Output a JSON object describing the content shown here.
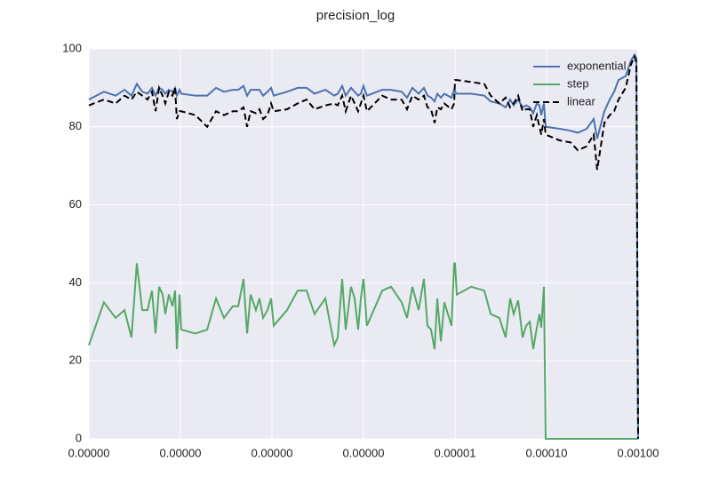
{
  "chart_data": {
    "type": "line",
    "title": "precision_log",
    "x": [
      1e-09,
      1.46e-09,
      1.96e-09,
      2.45e-09,
      2.92e-09,
      3.34e-09,
      3.83e-09,
      4.37e-09,
      4.89e-09,
      5.35e-09,
      5.85e-09,
      6.39e-09,
      6.84e-09,
      7.48e-09,
      8.18e-09,
      8.74e-09,
      9.14e-09,
      9.78e-09,
      1.02e-08,
      1.46e-08,
      1.96e-08,
      2.45e-08,
      2.99e-08,
      3.74e-08,
      4.28e-08,
      4.89e-08,
      5.35e-08,
      5.85e-08,
      6.68e-08,
      7.31e-08,
      8e-08,
      8.94e-08,
      9.78e-08,
      1.045e-07,
      1.46e-07,
      1.91e-07,
      2.39e-07,
      2.92e-07,
      3.83e-07,
      4.79e-07,
      5.23e-07,
      5.85e-07,
      6.39e-07,
      7.31e-07,
      8e-07,
      8.74e-07,
      9.35e-07,
      1e-06,
      1.09e-06,
      1.6e-06,
      2e-06,
      2.61e-06,
      2.99e-06,
      3.42e-06,
      4e-06,
      4.57e-06,
      5e-06,
      5.47e-06,
      5.98e-06,
      6.4e-06,
      7e-06,
      7.64e-06,
      9.14e-06,
      9.78e-06,
      1e-05,
      1.045e-05,
      1.5e-05,
      2.09e-05,
      2.45e-05,
      3.05e-05,
      3.57e-05,
      4e-05,
      4.37e-05,
      4.89e-05,
      5.47e-05,
      5.98e-05,
      6.55e-05,
      7.15e-05,
      7.82e-05,
      8.36e-05,
      8.75e-05,
      9.35e-05,
      9.78e-05,
      0.00014,
      0.000183,
      0.000219,
      0.000274,
      0.000327,
      0.000357,
      0.000428,
      0.000489,
      0.000547,
      0.000611,
      0.000731,
      0.000836,
      0.000914,
      0.000957,
      0.001
    ],
    "series": [
      {
        "name": "exponential",
        "color": "#4c72b0",
        "dash": false,
        "values": [
          87,
          89,
          88,
          89.5,
          88,
          91,
          89,
          88.5,
          90,
          88,
          90,
          89.5,
          88.5,
          89.5,
          89,
          90,
          88,
          89.5,
          88.5,
          88,
          88,
          90,
          89,
          89.5,
          89.5,
          90.5,
          88,
          89.5,
          89.5,
          89.5,
          88,
          89,
          90,
          88,
          89,
          90,
          90,
          88.5,
          89.5,
          88,
          88.5,
          90.5,
          88,
          90,
          89,
          88,
          88.5,
          90.5,
          88,
          89.5,
          89.5,
          89,
          87.5,
          90,
          88.5,
          90,
          88,
          87.5,
          86.5,
          88.5,
          87.5,
          88.5,
          87.5,
          89.5,
          89,
          88.5,
          88.5,
          88,
          86.5,
          86,
          85,
          87,
          85.5,
          87,
          85,
          85.5,
          85,
          83.5,
          86,
          85.5,
          83,
          86,
          80,
          79.5,
          79,
          78.5,
          79.5,
          82,
          77,
          84,
          87,
          89,
          92,
          93,
          97,
          98.5,
          97.5,
          0
        ]
      },
      {
        "name": "step",
        "color": "#55a868",
        "dash": false,
        "values": [
          24,
          35,
          31,
          33,
          26,
          45,
          33,
          33,
          38,
          27,
          39,
          37,
          32,
          37,
          34,
          38,
          23,
          37,
          28,
          27,
          28,
          36,
          31,
          34,
          34,
          41,
          27,
          37,
          33,
          36,
          31,
          33,
          36,
          29,
          33,
          38,
          38,
          32,
          36,
          24,
          26,
          41,
          28,
          39,
          36,
          28,
          36,
          41,
          29,
          38,
          39,
          35,
          31,
          39,
          33,
          41,
          29,
          28,
          23,
          36,
          25,
          35,
          29,
          45,
          45,
          37,
          39,
          38,
          32,
          31,
          26,
          36,
          32,
          35.5,
          26,
          29,
          30,
          23,
          28.5,
          32,
          28.5,
          39,
          0,
          0,
          0,
          0,
          0,
          0,
          0,
          0,
          0,
          0,
          0,
          0,
          0,
          0,
          0,
          0
        ]
      },
      {
        "name": "linear",
        "color": "#000000",
        "dash": true,
        "values": [
          85.5,
          87,
          86,
          88,
          87,
          89,
          88,
          87,
          89,
          84,
          90,
          88,
          86,
          89,
          88,
          90,
          82,
          84,
          84,
          83,
          80,
          84,
          83,
          84,
          84,
          85,
          80,
          84,
          83.5,
          84.5,
          82,
          83,
          86,
          84,
          84.5,
          86,
          87,
          84.5,
          85.5,
          86,
          85.5,
          88,
          84,
          88,
          86,
          84,
          86,
          88,
          84,
          88,
          87,
          87,
          84.5,
          88,
          87,
          88,
          85,
          84.5,
          81,
          85,
          84.5,
          86,
          84.5,
          86,
          92,
          92,
          91.5,
          91,
          88,
          86,
          87.5,
          85,
          86,
          88,
          84,
          84.5,
          84.5,
          80,
          83,
          80,
          78,
          82,
          78,
          76.5,
          76,
          74,
          75,
          78,
          69,
          81,
          83,
          84,
          87,
          90,
          96,
          98,
          96.5,
          0
        ]
      }
    ],
    "xlim": [
      1e-09,
      0.001
    ],
    "log_x": true,
    "xticks": [
      {
        "value": 1e-09,
        "label": "0.00000"
      },
      {
        "value": 1e-08,
        "label": "0.00000"
      },
      {
        "value": 1e-07,
        "label": "0.00000"
      },
      {
        "value": 1e-06,
        "label": "0.00000"
      },
      {
        "value": 1e-05,
        "label": "0.00001"
      },
      {
        "value": 0.0001,
        "label": "0.00010"
      },
      {
        "value": 0.001,
        "label": "0.00100"
      }
    ],
    "ylim": [
      0,
      100
    ],
    "yticks": [
      0,
      20,
      40,
      60,
      80,
      100
    ],
    "grid": true,
    "legend": "upper right"
  }
}
